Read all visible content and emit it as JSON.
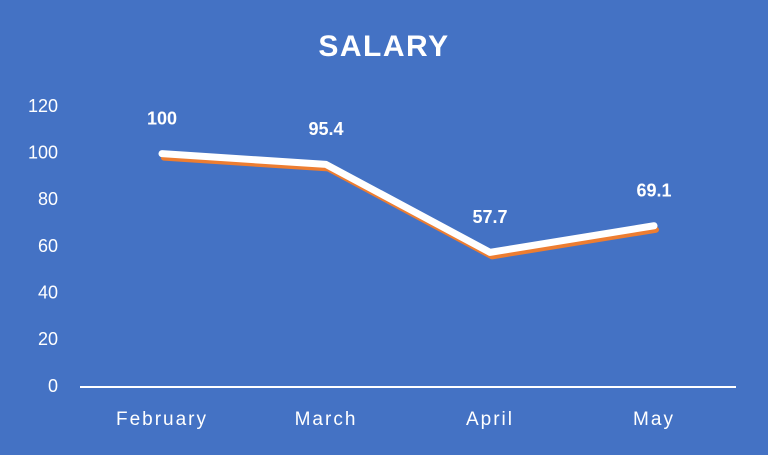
{
  "chart_data": {
    "type": "line",
    "title": "SALARY",
    "categories": [
      "February",
      "March",
      "April",
      "May"
    ],
    "series": [
      {
        "name": "Salary",
        "color": "#ffffff",
        "values": [
          100,
          95.4,
          57.7,
          69.1
        ]
      }
    ],
    "ylim": [
      0,
      120
    ],
    "yticks": [
      0,
      20,
      40,
      60,
      80,
      100,
      120
    ],
    "grid": false,
    "legend": false,
    "data_labels": true
  }
}
